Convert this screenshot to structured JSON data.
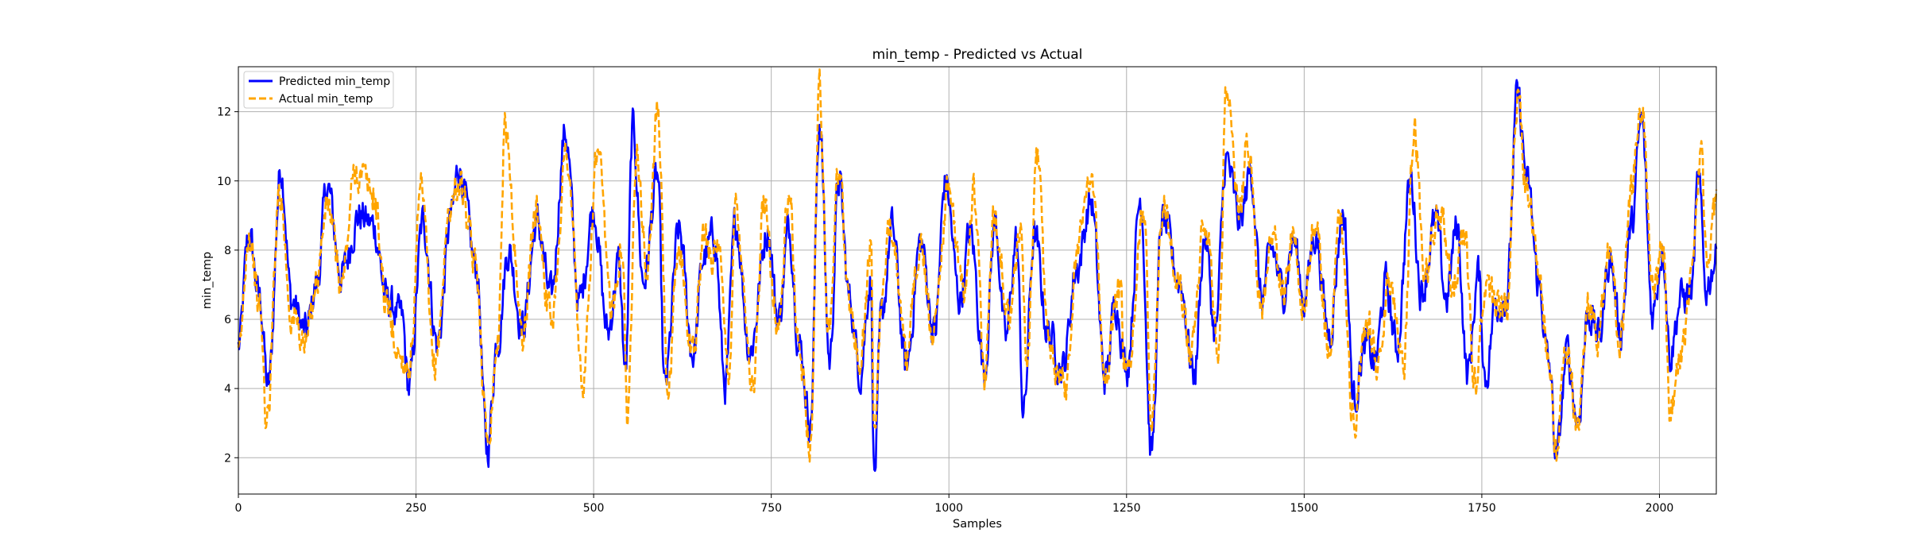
{
  "chart_data": {
    "type": "line",
    "title": "min_temp - Predicted vs Actual",
    "xlabel": "Samples",
    "ylabel": "min_temp",
    "xlim": [
      0,
      2080
    ],
    "ylim": [
      0.95,
      13.3
    ],
    "xticks": [
      0,
      250,
      500,
      750,
      1000,
      1250,
      1500,
      1750,
      2000
    ],
    "yticks": [
      2,
      4,
      6,
      8,
      10,
      12
    ],
    "grid": true,
    "legend_position": "top-left",
    "n_samples": 2080,
    "series": [
      {
        "name": "Predicted min_temp",
        "color": "#0000ff",
        "style": "solid",
        "anchors": [
          [
            0,
            5.2
          ],
          [
            15,
            8.4
          ],
          [
            30,
            6.6
          ],
          [
            42,
            4.0
          ],
          [
            60,
            10.4
          ],
          [
            75,
            6.5
          ],
          [
            95,
            5.6
          ],
          [
            110,
            7.0
          ],
          [
            125,
            9.8
          ],
          [
            145,
            7.3
          ],
          [
            170,
            9.0
          ],
          [
            190,
            8.7
          ],
          [
            210,
            6.5
          ],
          [
            230,
            6.0
          ],
          [
            240,
            4.0
          ],
          [
            260,
            8.8
          ],
          [
            280,
            5.3
          ],
          [
            300,
            9.0
          ],
          [
            310,
            10.4
          ],
          [
            335,
            7.5
          ],
          [
            350,
            2.2
          ],
          [
            365,
            5.5
          ],
          [
            380,
            8.0
          ],
          [
            400,
            5.8
          ],
          [
            420,
            8.8
          ],
          [
            440,
            6.6
          ],
          [
            460,
            11.4
          ],
          [
            480,
            6.5
          ],
          [
            500,
            9.2
          ],
          [
            520,
            5.6
          ],
          [
            535,
            7.6
          ],
          [
            545,
            4.5
          ],
          [
            555,
            11.5
          ],
          [
            570,
            7.1
          ],
          [
            590,
            10.1
          ],
          [
            600,
            4.0
          ],
          [
            620,
            8.5
          ],
          [
            640,
            5.0
          ],
          [
            655,
            7.8
          ],
          [
            670,
            8.4
          ],
          [
            685,
            4.1
          ],
          [
            700,
            8.8
          ],
          [
            720,
            5.1
          ],
          [
            745,
            8.6
          ],
          [
            760,
            6.0
          ],
          [
            775,
            8.6
          ],
          [
            790,
            5.2
          ],
          [
            805,
            3.0
          ],
          [
            818,
            11.8
          ],
          [
            832,
            4.8
          ],
          [
            845,
            10.0
          ],
          [
            860,
            6.6
          ],
          [
            875,
            4.5
          ],
          [
            890,
            7.2
          ],
          [
            895,
            1.5
          ],
          [
            905,
            6.0
          ],
          [
            920,
            8.6
          ],
          [
            940,
            4.6
          ],
          [
            960,
            8.2
          ],
          [
            980,
            5.6
          ],
          [
            995,
            10.0
          ],
          [
            1015,
            6.6
          ],
          [
            1030,
            8.5
          ],
          [
            1050,
            4.6
          ],
          [
            1065,
            8.8
          ],
          [
            1080,
            5.4
          ],
          [
            1095,
            8.3
          ],
          [
            1105,
            3.3
          ],
          [
            1120,
            8.4
          ],
          [
            1140,
            5.6
          ],
          [
            1160,
            4.6
          ],
          [
            1180,
            7.5
          ],
          [
            1200,
            9.4
          ],
          [
            1220,
            4.3
          ],
          [
            1235,
            6.5
          ],
          [
            1250,
            4.6
          ],
          [
            1270,
            9.5
          ],
          [
            1285,
            2.1
          ],
          [
            1300,
            8.9
          ],
          [
            1325,
            7.1
          ],
          [
            1345,
            4.4
          ],
          [
            1360,
            8.4
          ],
          [
            1375,
            5.6
          ],
          [
            1390,
            10.6
          ],
          [
            1410,
            8.8
          ],
          [
            1425,
            10.3
          ],
          [
            1440,
            6.6
          ],
          [
            1455,
            8.0
          ],
          [
            1470,
            6.8
          ],
          [
            1485,
            8.3
          ],
          [
            1500,
            6.6
          ],
          [
            1515,
            8.5
          ],
          [
            1535,
            5.6
          ],
          [
            1555,
            9.1
          ],
          [
            1570,
            3.7
          ],
          [
            1585,
            5.2
          ],
          [
            1600,
            4.8
          ],
          [
            1615,
            7.0
          ],
          [
            1630,
            5.2
          ],
          [
            1650,
            10.0
          ],
          [
            1665,
            6.8
          ],
          [
            1685,
            8.8
          ],
          [
            1700,
            6.6
          ],
          [
            1715,
            8.7
          ],
          [
            1730,
            4.4
          ],
          [
            1745,
            7.3
          ],
          [
            1755,
            4.3
          ],
          [
            1770,
            6.5
          ],
          [
            1785,
            6.6
          ],
          [
            1800,
            12.4
          ],
          [
            1815,
            9.8
          ],
          [
            1830,
            7.0
          ],
          [
            1845,
            4.6
          ],
          [
            1855,
            2.0
          ],
          [
            1870,
            5.0
          ],
          [
            1885,
            3.1
          ],
          [
            1900,
            6.2
          ],
          [
            1915,
            5.5
          ],
          [
            1930,
            7.8
          ],
          [
            1945,
            5.7
          ],
          [
            1960,
            8.6
          ],
          [
            1975,
            11.7
          ],
          [
            1990,
            6.2
          ],
          [
            2005,
            8.1
          ],
          [
            2015,
            5.0
          ],
          [
            2030,
            6.6
          ],
          [
            2045,
            6.8
          ],
          [
            2055,
            10.0
          ],
          [
            2065,
            6.9
          ],
          [
            2080,
            7.8
          ]
        ]
      },
      {
        "name": "Actual min_temp",
        "color": "#ffa500",
        "style": "dashed",
        "anchors": [
          [
            0,
            4.8
          ],
          [
            15,
            8.6
          ],
          [
            30,
            6.3
          ],
          [
            40,
            3.0
          ],
          [
            58,
            9.8
          ],
          [
            75,
            6.1
          ],
          [
            95,
            5.3
          ],
          [
            110,
            7.2
          ],
          [
            125,
            9.3
          ],
          [
            145,
            7.0
          ],
          [
            165,
            10.3
          ],
          [
            190,
            9.6
          ],
          [
            210,
            6.3
          ],
          [
            225,
            5.0
          ],
          [
            240,
            4.7
          ],
          [
            258,
            9.6
          ],
          [
            275,
            4.6
          ],
          [
            300,
            9.4
          ],
          [
            310,
            10.0
          ],
          [
            335,
            7.4
          ],
          [
            350,
            2.6
          ],
          [
            365,
            5.3
          ],
          [
            375,
            11.5
          ],
          [
            400,
            5.6
          ],
          [
            420,
            9.2
          ],
          [
            440,
            6.0
          ],
          [
            462,
            10.8
          ],
          [
            485,
            4.1
          ],
          [
            505,
            10.7
          ],
          [
            525,
            6.4
          ],
          [
            540,
            8.4
          ],
          [
            548,
            3.0
          ],
          [
            560,
            11.2
          ],
          [
            575,
            7.4
          ],
          [
            590,
            11.9
          ],
          [
            605,
            4.0
          ],
          [
            620,
            8.0
          ],
          [
            640,
            5.0
          ],
          [
            655,
            8.3
          ],
          [
            675,
            7.8
          ],
          [
            690,
            4.5
          ],
          [
            700,
            9.2
          ],
          [
            725,
            4.2
          ],
          [
            740,
            9.3
          ],
          [
            760,
            5.8
          ],
          [
            775,
            9.5
          ],
          [
            790,
            4.9
          ],
          [
            805,
            2.5
          ],
          [
            818,
            12.7
          ],
          [
            830,
            5.8
          ],
          [
            845,
            10.3
          ],
          [
            860,
            6.4
          ],
          [
            875,
            4.7
          ],
          [
            890,
            8.1
          ],
          [
            895,
            2.8
          ],
          [
            905,
            6.4
          ],
          [
            920,
            8.9
          ],
          [
            940,
            4.7
          ],
          [
            960,
            8.3
          ],
          [
            975,
            5.6
          ],
          [
            1000,
            9.7
          ],
          [
            1020,
            6.7
          ],
          [
            1035,
            9.7
          ],
          [
            1050,
            4.4
          ],
          [
            1065,
            9.0
          ],
          [
            1085,
            5.9
          ],
          [
            1100,
            8.5
          ],
          [
            1110,
            4.9
          ],
          [
            1125,
            10.7
          ],
          [
            1140,
            5.3
          ],
          [
            1165,
            4.1
          ],
          [
            1180,
            8.0
          ],
          [
            1200,
            10.4
          ],
          [
            1220,
            4.4
          ],
          [
            1240,
            6.8
          ],
          [
            1250,
            4.2
          ],
          [
            1275,
            9.3
          ],
          [
            1285,
            3.0
          ],
          [
            1300,
            9.5
          ],
          [
            1320,
            7.6
          ],
          [
            1340,
            5.1
          ],
          [
            1360,
            8.8
          ],
          [
            1380,
            5.4
          ],
          [
            1390,
            12.4
          ],
          [
            1410,
            9.3
          ],
          [
            1420,
            11.3
          ],
          [
            1440,
            6.4
          ],
          [
            1455,
            8.4
          ],
          [
            1470,
            6.7
          ],
          [
            1485,
            8.6
          ],
          [
            1500,
            6.4
          ],
          [
            1515,
            8.9
          ],
          [
            1535,
            5.3
          ],
          [
            1550,
            9.1
          ],
          [
            1570,
            3.1
          ],
          [
            1590,
            5.8
          ],
          [
            1605,
            4.7
          ],
          [
            1620,
            7.3
          ],
          [
            1640,
            4.9
          ],
          [
            1655,
            11.4
          ],
          [
            1670,
            7.2
          ],
          [
            1690,
            9.1
          ],
          [
            1710,
            6.9
          ],
          [
            1725,
            8.8
          ],
          [
            1740,
            4.1
          ],
          [
            1755,
            7.2
          ],
          [
            1770,
            6.3
          ],
          [
            1785,
            6.3
          ],
          [
            1800,
            12.6
          ],
          [
            1815,
            9.6
          ],
          [
            1830,
            7.4
          ],
          [
            1845,
            4.9
          ],
          [
            1855,
            2.2
          ],
          [
            1868,
            5.3
          ],
          [
            1885,
            3.0
          ],
          [
            1900,
            6.5
          ],
          [
            1915,
            5.6
          ],
          [
            1930,
            8.0
          ],
          [
            1945,
            5.3
          ],
          [
            1960,
            9.8
          ],
          [
            1975,
            12.4
          ],
          [
            1990,
            6.5
          ],
          [
            2005,
            8.0
          ],
          [
            2015,
            3.3
          ],
          [
            2030,
            5.0
          ],
          [
            2045,
            6.9
          ],
          [
            2058,
            10.7
          ],
          [
            2068,
            7.1
          ],
          [
            2080,
            9.5
          ]
        ]
      }
    ]
  }
}
